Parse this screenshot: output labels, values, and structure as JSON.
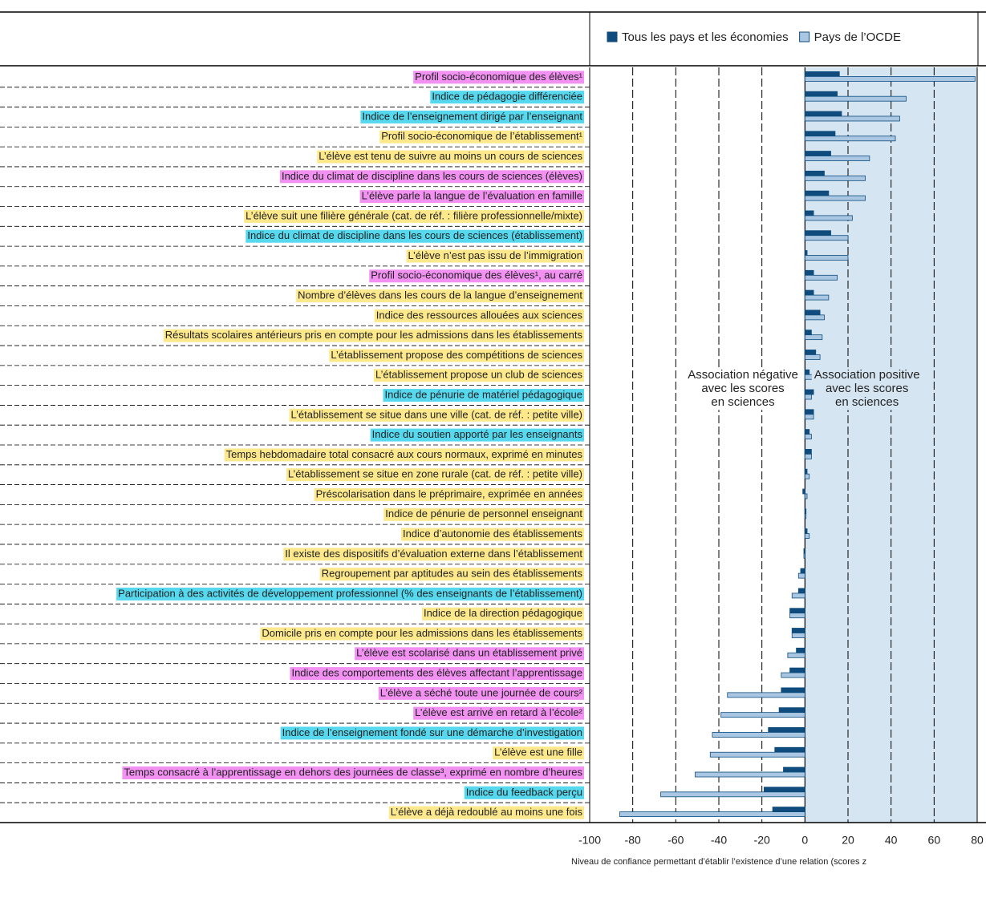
{
  "chart_data": {
    "type": "bar",
    "orientation": "horizontal",
    "legend_position": "top-right",
    "categories": [
      "Profil socio-économique des élèves¹",
      "Indice de pédagogie différenciée",
      "Indice de l’enseignement dirigé par l’enseignant",
      "Profil socio-économique de l’établissement¹",
      "L’élève est tenu de suivre au moins un cours de sciences",
      "Indice du climat de discipline dans les cours de sciences (élèves)",
      "L’élève parle la langue de l’évaluation en famille",
      "L’élève suit une filière générale (cat. de réf. : filière professionnelle/mixte)",
      "Indice du climat de discipline dans les cours de sciences (établissement)",
      "L’élève n’est pas issu de l’immigration",
      "Profil socio-économique des élèves¹, au carré",
      "Nombre d’élèves dans les cours de la langue d’enseignement",
      "Indice des ressources allouées aux sciences",
      "Résultats scolaires antérieurs pris en compte pour les admissions dans les établissements",
      "L’établissement propose des compétitions de sciences",
      "L’établissement propose un club de sciences",
      "Indice de pénurie de matériel pédagogique",
      "L’établissement se situe dans une ville (cat. de réf. : petite ville)",
      "Indice du soutien apporté par les enseignants",
      "Temps hebdomadaire total consacré aux cours normaux, exprimé en minutes",
      "L’établissement se situe en zone rurale (cat. de réf. : petite ville)",
      "Préscolarisation dans le préprimaire, exprimée en années",
      "Indice de pénurie de personnel enseignant",
      "Indice d’autonomie des établissements",
      "Il existe des dispositifs d’évaluation externe dans l’établissement",
      "Regroupement par aptitudes au sein des établissements",
      "Participation à des activités de développement professionnel (% des enseignants de l’établissement)",
      "Indice de la direction pédagogique",
      "Domicile pris en compte pour les admissions dans les établissements",
      "L’élève est scolarisé dans un établissement privé",
      "Indice des comportements des élèves affectant l’apprentissage",
      "L’élève a séché toute une journée de cours²",
      "L’élève est arrivé en retard à l’école²",
      "Indice de l’enseignement fondé sur une démarche d’investigation",
      "L’élève est une fille",
      "Temps consacré à l’apprentissage en dehors des journées de classe³, exprimé en nombre d’heures",
      "Indice du feedback perçu",
      "L’élève a déjà redoublé au moins une fois"
    ],
    "label_colors": [
      "#f291f2",
      "#56d9ef",
      "#56d9ef",
      "#fde98c",
      "#fde98c",
      "#f291f2",
      "#f291f2",
      "#fde98c",
      "#56d9ef",
      "#fde98c",
      "#f291f2",
      "#fde98c",
      "#fde98c",
      "#fde98c",
      "#fde98c",
      "#fde98c",
      "#56d9ef",
      "#fde98c",
      "#56d9ef",
      "#fde98c",
      "#fde98c",
      "#fde98c",
      "#fde98c",
      "#fde98c",
      "#fde98c",
      "#fde98c",
      "#56d9ef",
      "#fde98c",
      "#fde98c",
      "#f291f2",
      "#f291f2",
      "#f291f2",
      "#f291f2",
      "#56d9ef",
      "#fde98c",
      "#f291f2",
      "#56d9ef",
      "#fde98c"
    ],
    "series": [
      {
        "name": "Tous les pays et les économies",
        "color": "#0f4c7d",
        "values": [
          16,
          15,
          17,
          14,
          12,
          9,
          11,
          4,
          12,
          1,
          4,
          4,
          7,
          3,
          5,
          2,
          4,
          4,
          2,
          3,
          1,
          -1,
          0.5,
          1,
          -0.5,
          -2,
          -3,
          -7,
          -6,
          -4,
          -7,
          -11,
          -12,
          -17,
          -14,
          -10,
          -19,
          -15
        ]
      },
      {
        "name": "Pays de l’OCDE",
        "color": "#a9c7e2",
        "values": [
          79,
          47,
          44,
          42,
          30,
          28,
          28,
          22,
          20,
          20,
          15,
          11,
          9,
          8,
          7,
          5,
          3,
          4,
          3,
          3,
          2,
          1,
          0.5,
          2,
          -0.5,
          -3,
          -6,
          -7,
          -6,
          -8,
          -11,
          -36,
          -39,
          -43,
          -44,
          -51,
          -67,
          -86
        ]
      }
    ],
    "annotations": [
      [
        "Association négative",
        "avec les scores",
        "en sciences"
      ],
      [
        "Association positive",
        "avec les scores",
        "en sciences"
      ]
    ],
    "xlabel": "Niveau de confiance permettant d’établir l’existence d’une relation (scores z",
    "xlim": [
      -100,
      80
    ],
    "xticks": [
      -100,
      -80,
      -60,
      -40,
      -20,
      0,
      20,
      40,
      60,
      80
    ],
    "positive_background": "#d6e5f2",
    "grid": true
  }
}
